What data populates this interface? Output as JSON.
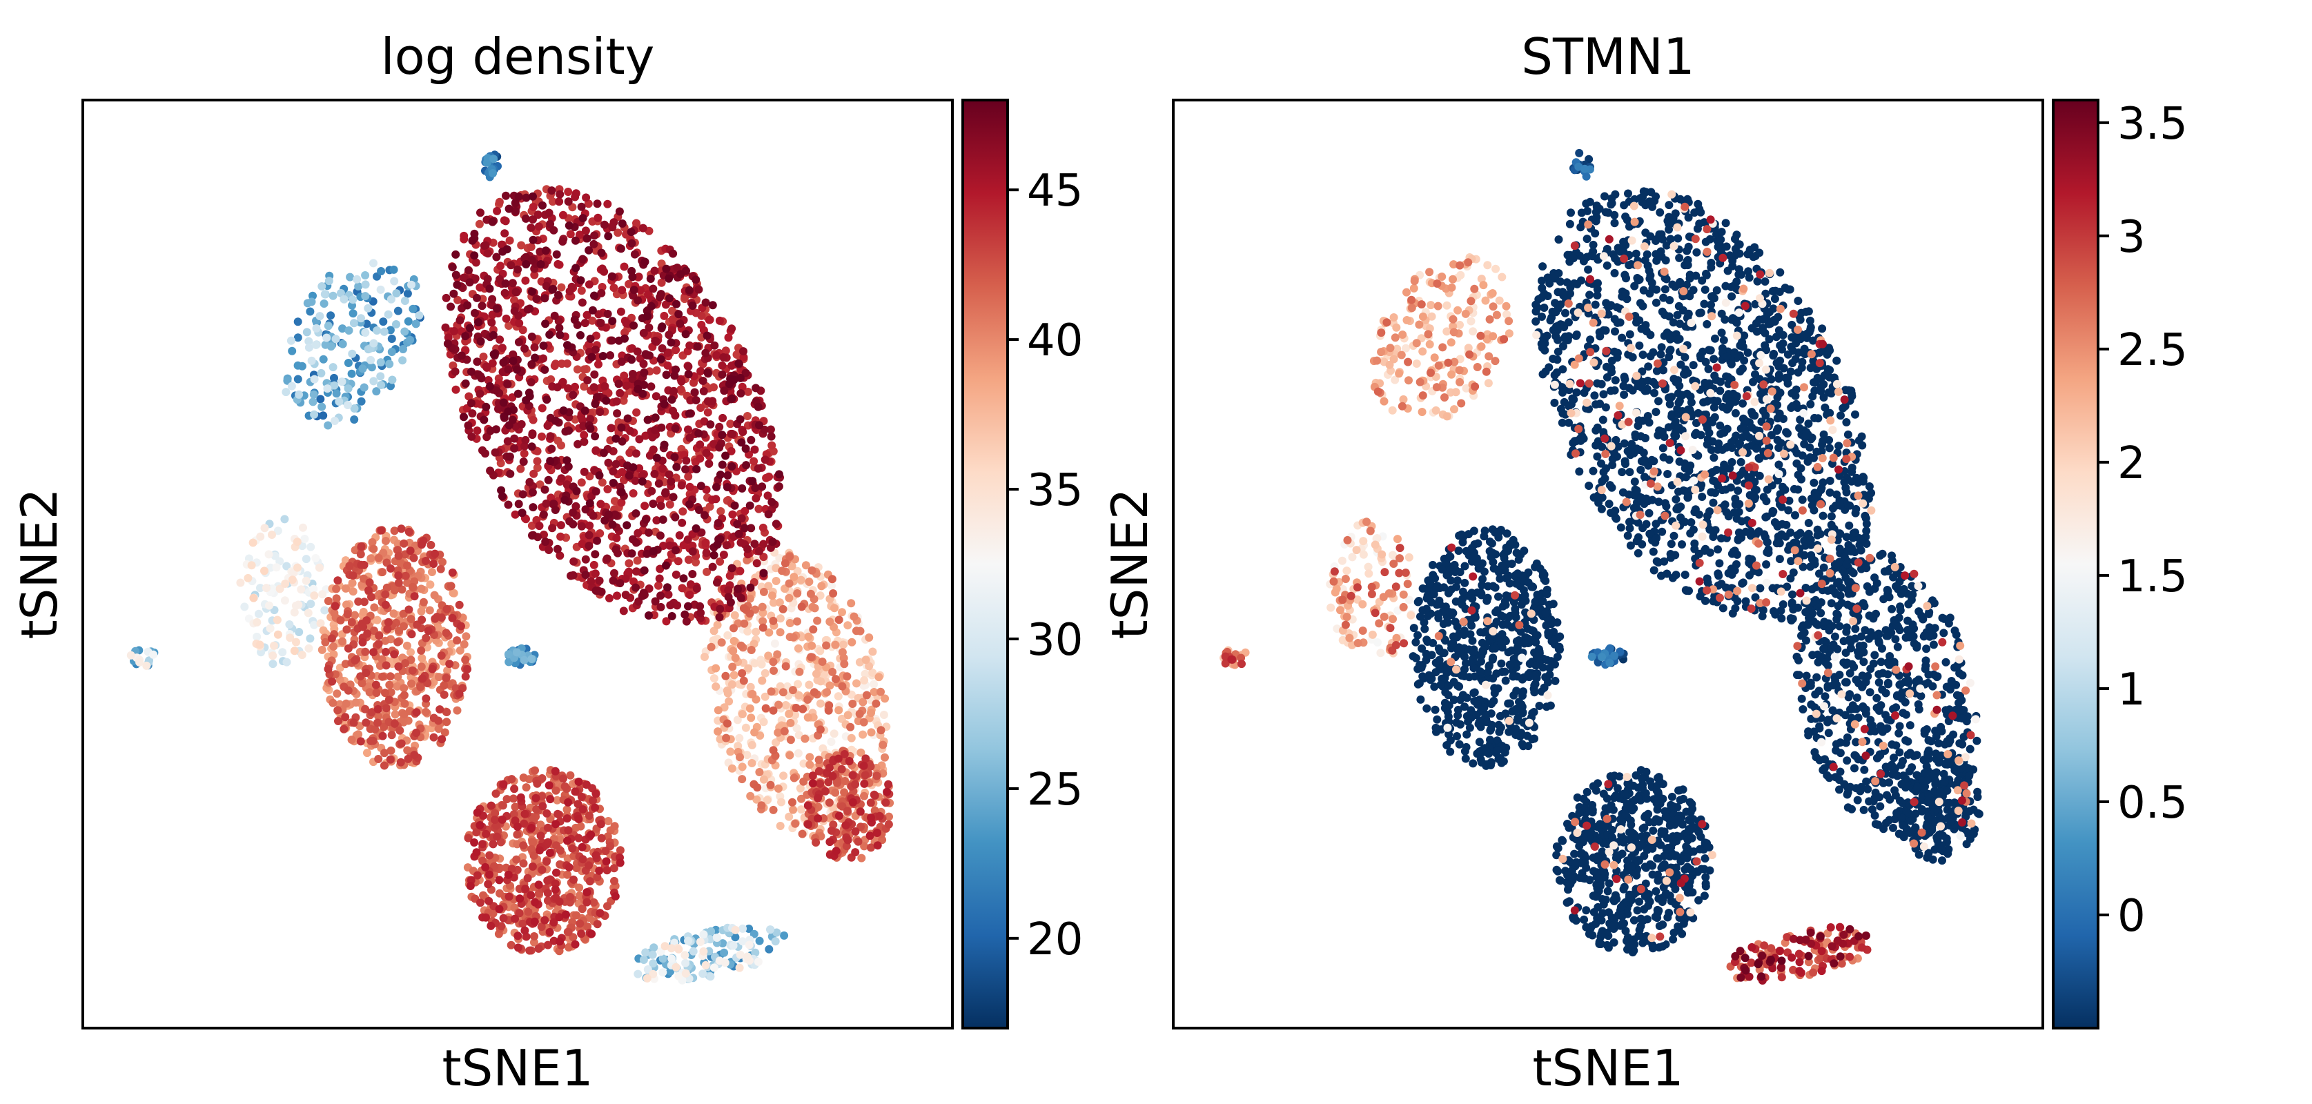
{
  "chart_data": [
    {
      "type": "scatter",
      "title": "log density",
      "xlabel": "tSNE1",
      "ylabel": "tSNE2",
      "colormap": "RdBu_r",
      "color_range": [
        17,
        48
      ],
      "colorbar_ticks": [
        "20",
        "25",
        "30",
        "35",
        "40",
        "45"
      ],
      "colorbar_tick_values": [
        20,
        25,
        30,
        35,
        40,
        45
      ],
      "clusters": [
        {
          "cx": 0.61,
          "cy": 0.33,
          "rx": 0.16,
          "ry": 0.26,
          "rot": -32,
          "n": 1700,
          "value": [
            43,
            48
          ]
        },
        {
          "cx": 0.36,
          "cy": 0.59,
          "rx": 0.085,
          "ry": 0.13,
          "rot": 0,
          "n": 650,
          "value": [
            38,
            44
          ]
        },
        {
          "cx": 0.53,
          "cy": 0.82,
          "rx": 0.09,
          "ry": 0.1,
          "rot": 0,
          "n": 600,
          "value": [
            40,
            45
          ]
        },
        {
          "cx": 0.82,
          "cy": 0.64,
          "rx": 0.1,
          "ry": 0.16,
          "rot": -15,
          "n": 650,
          "value": [
            33,
            42
          ]
        },
        {
          "cx": 0.88,
          "cy": 0.76,
          "rx": 0.05,
          "ry": 0.06,
          "rot": 0,
          "n": 200,
          "value": [
            40,
            45
          ]
        },
        {
          "cx": 0.31,
          "cy": 0.26,
          "rx": 0.07,
          "ry": 0.1,
          "rot": 35,
          "n": 200,
          "value": [
            20,
            30
          ]
        },
        {
          "cx": 0.23,
          "cy": 0.53,
          "rx": 0.05,
          "ry": 0.08,
          "rot": 0,
          "n": 120,
          "value": [
            28,
            36
          ]
        },
        {
          "cx": 0.72,
          "cy": 0.92,
          "rx": 0.09,
          "ry": 0.025,
          "rot": -10,
          "n": 140,
          "value": [
            22,
            35
          ]
        },
        {
          "cx": 0.47,
          "cy": 0.07,
          "rx": 0.01,
          "ry": 0.015,
          "rot": 0,
          "n": 20,
          "value": [
            18,
            24
          ]
        },
        {
          "cx": 0.5,
          "cy": 0.6,
          "rx": 0.02,
          "ry": 0.01,
          "rot": 0,
          "n": 30,
          "value": [
            20,
            26
          ]
        },
        {
          "cx": 0.07,
          "cy": 0.6,
          "rx": 0.015,
          "ry": 0.01,
          "rot": 0,
          "n": 18,
          "value": [
            22,
            34
          ]
        }
      ]
    },
    {
      "type": "scatter",
      "title": "STMN1",
      "xlabel": "tSNE1",
      "ylabel": "tSNE2",
      "colormap": "RdBu_r",
      "color_range": [
        -0.5,
        3.6
      ],
      "colorbar_ticks": [
        "0",
        "0.5",
        "1",
        "1.5",
        "2",
        "2.5",
        "3",
        "3.5"
      ],
      "colorbar_tick_values": [
        0,
        0.5,
        1,
        1.5,
        2,
        2.5,
        3,
        3.5
      ],
      "clusters": [
        {
          "cx": 0.61,
          "cy": 0.33,
          "rx": 0.16,
          "ry": 0.26,
          "rot": -32,
          "n": 1700,
          "value": [
            -0.5,
            -0.5
          ],
          "highFrac": 0.1
        },
        {
          "cx": 0.36,
          "cy": 0.59,
          "rx": 0.085,
          "ry": 0.13,
          "rot": 0,
          "n": 650,
          "value": [
            -0.5,
            -0.5
          ],
          "highFrac": 0.03
        },
        {
          "cx": 0.53,
          "cy": 0.82,
          "rx": 0.09,
          "ry": 0.1,
          "rot": 0,
          "n": 600,
          "value": [
            -0.5,
            -0.5
          ],
          "highFrac": 0.05
        },
        {
          "cx": 0.82,
          "cy": 0.64,
          "rx": 0.1,
          "ry": 0.16,
          "rot": -15,
          "n": 650,
          "value": [
            -0.5,
            -0.5
          ],
          "highFrac": 0.08
        },
        {
          "cx": 0.88,
          "cy": 0.76,
          "rx": 0.05,
          "ry": 0.06,
          "rot": 0,
          "n": 200,
          "value": [
            -0.5,
            -0.5
          ],
          "highFrac": 0.1
        },
        {
          "cx": 0.31,
          "cy": 0.26,
          "rx": 0.07,
          "ry": 0.1,
          "rot": 35,
          "n": 200,
          "value": [
            1.8,
            2.8
          ]
        },
        {
          "cx": 0.23,
          "cy": 0.53,
          "rx": 0.05,
          "ry": 0.08,
          "rot": 0,
          "n": 120,
          "value": [
            1.5,
            3.0
          ]
        },
        {
          "cx": 0.72,
          "cy": 0.92,
          "rx": 0.09,
          "ry": 0.025,
          "rot": -10,
          "n": 140,
          "value": [
            2.5,
            3.6
          ]
        },
        {
          "cx": 0.47,
          "cy": 0.07,
          "rx": 0.01,
          "ry": 0.015,
          "rot": 0,
          "n": 20,
          "value": [
            -0.5,
            0.2
          ]
        },
        {
          "cx": 0.5,
          "cy": 0.6,
          "rx": 0.02,
          "ry": 0.01,
          "rot": 0,
          "n": 30,
          "value": [
            -0.5,
            0.3
          ]
        },
        {
          "cx": 0.07,
          "cy": 0.6,
          "rx": 0.015,
          "ry": 0.01,
          "rot": 0,
          "n": 18,
          "value": [
            2.0,
            3.2
          ]
        }
      ]
    }
  ]
}
